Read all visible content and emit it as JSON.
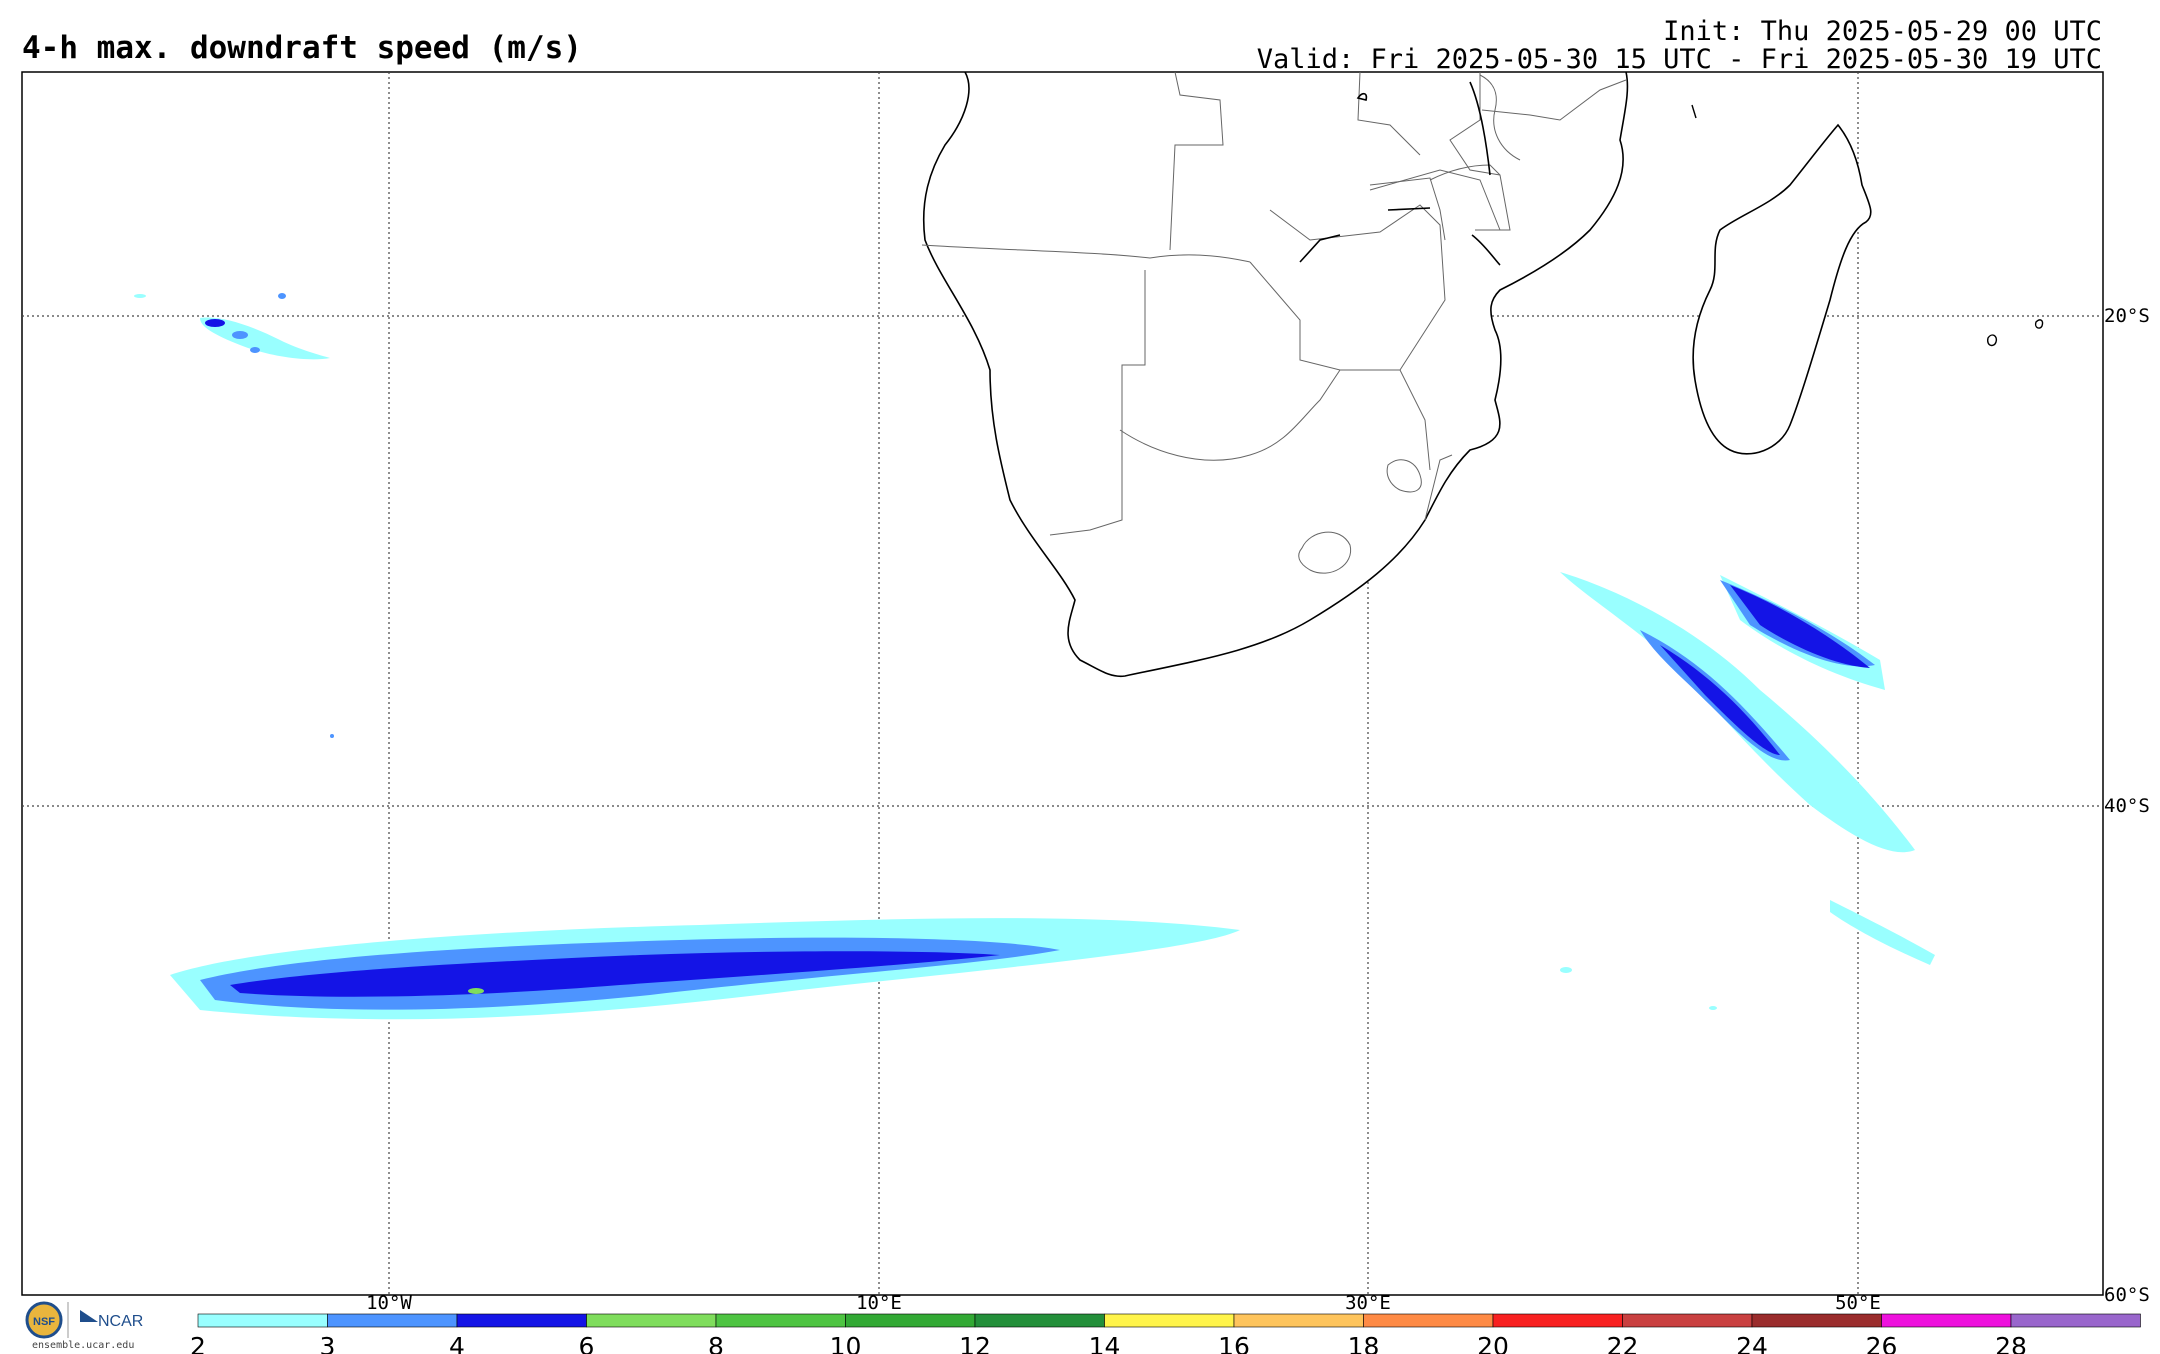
{
  "header": {
    "title": "4-h max. downdraft speed (m/s)",
    "init": "Init: Thu 2025-05-29 00 UTC",
    "valid": "Valid: Fri 2025-05-30 15 UTC - Fri 2025-05-30 19 UTC"
  },
  "map": {
    "projection": "cylindrical equidistant",
    "lon_range": [
      -25,
      60
    ],
    "lat_range": [
      -60,
      -10
    ],
    "grid": "dotted",
    "lon_labels": [
      {
        "lon": -10,
        "text": "10°W"
      },
      {
        "lon": 10,
        "text": "10°E"
      },
      {
        "lon": 30,
        "text": "30°E"
      },
      {
        "lon": 50,
        "text": "50°E"
      }
    ],
    "lat_labels": [
      {
        "lat": -20,
        "text": "20°S"
      },
      {
        "lat": -40,
        "text": "40°S"
      },
      {
        "lat": -60,
        "text": "60°S"
      }
    ],
    "features": [
      "Southern Africa coastline and borders",
      "Madagascar",
      "Lake Malawi",
      "Lesotho"
    ],
    "field_regions": [
      "South Atlantic band near 46°S",
      "Indian Ocean band southeast of Madagascar",
      "Scattered cells near 20°S, 17°W"
    ]
  },
  "colorbar": {
    "ticks": [
      "2",
      "3",
      "4",
      "6",
      "8",
      "10",
      "12",
      "14",
      "16",
      "18",
      "20",
      "22",
      "24",
      "26",
      "28"
    ],
    "colors": [
      "#99ffff",
      "#4d94ff",
      "#1414e6",
      "#7fdd5c",
      "#4ec442",
      "#32a934",
      "#238f3a",
      "#fff44a",
      "#fec45c",
      "#fe8a45",
      "#f82020",
      "#c94040",
      "#9a2c2c",
      "#ee11dd",
      "#9966cc"
    ]
  },
  "logo": {
    "org1": "NSF",
    "org2": "NCAR",
    "url": "ensemble.ucar.edu"
  }
}
